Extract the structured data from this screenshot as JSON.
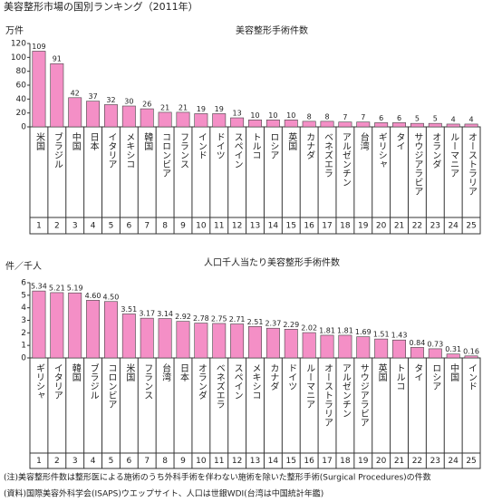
{
  "title": "美容整形市場の国別ランキング（2011年）",
  "notes": [
    "(注)美容整形件数は整形医による施術のうち外科手術を伴わない施術を除いた整形手術(Surgical Procedures)の件数",
    "(資料)国際美容外科学会(ISAPS)ウエップサイト、人口は世銀WDI(台湾は中国統計年鑑)"
  ],
  "chart_data": [
    {
      "type": "bar",
      "title": "美容整形手術件数",
      "y_label": "万件",
      "categories": [
        "米国",
        "ブラジル",
        "中国",
        "日本",
        "イタリア",
        "メキシコ",
        "韓国",
        "コロンビア",
        "フランス",
        "インド",
        "ドイツ",
        "スペイン",
        "トルコ",
        "ロシア",
        "英国",
        "カナダ",
        "ベネズエラ",
        "アルゼンチン",
        "台湾",
        "ギリシャ",
        "タイ",
        "サウジアラビア",
        "オランダ",
        "ルーマニア",
        "オーストラリア"
      ],
      "ranks": [
        1,
        2,
        3,
        4,
        5,
        6,
        7,
        8,
        9,
        10,
        11,
        12,
        13,
        14,
        15,
        16,
        17,
        18,
        19,
        20,
        21,
        22,
        23,
        24,
        25
      ],
      "values": [
        109,
        91,
        42,
        37,
        32,
        30,
        26,
        21,
        21,
        19,
        19,
        13,
        10,
        10,
        10,
        8,
        8,
        7,
        7,
        6,
        6,
        5,
        5,
        4,
        4
      ],
      "color": "#f48fc6",
      "ylim": [
        0,
        120
      ],
      "yticks": [
        0,
        20,
        40,
        60,
        80,
        100,
        120
      ]
    },
    {
      "type": "bar",
      "title": "人口千人当たり美容整形手術件数",
      "y_label": "件／千人",
      "categories": [
        "ギリシャ",
        "イタリア",
        "韓国",
        "ブラジル",
        "コロンビア",
        "米国",
        "フランス",
        "台湾",
        "日本",
        "オランダ",
        "ベネズエラ",
        "スペイン",
        "メキシコ",
        "カナダ",
        "ドイツ",
        "ルーマニア",
        "オーストラリア",
        "アルゼンチン",
        "サウジアラビア",
        "英国",
        "トルコ",
        "タイ",
        "ロシア",
        "中国",
        "インド"
      ],
      "ranks": [
        1,
        2,
        3,
        4,
        5,
        6,
        7,
        8,
        9,
        10,
        11,
        12,
        13,
        14,
        15,
        16,
        17,
        18,
        19,
        20,
        21,
        22,
        23,
        24,
        25
      ],
      "values": [
        5.34,
        5.21,
        5.19,
        4.6,
        4.5,
        3.51,
        3.17,
        3.14,
        2.92,
        2.78,
        2.75,
        2.71,
        2.51,
        2.37,
        2.29,
        2.02,
        1.81,
        1.81,
        1.69,
        1.51,
        1.43,
        0.84,
        0.73,
        0.31,
        0.16
      ],
      "value_labels": [
        "5.34",
        "5.21",
        "5.19",
        "4.60",
        "4.50",
        "3.51",
        "3.17",
        "3.14",
        "2.92",
        "2.78",
        "2.75",
        "2.71",
        "2.51",
        "2.37",
        "2.29",
        "2.02",
        "1.81",
        "1.81",
        "1.69",
        "1.51",
        "1.43",
        "0.84",
        "0.73",
        "0.31",
        "0.16"
      ],
      "color": "#f48fc6",
      "ylim": [
        0,
        6
      ],
      "yticks": [
        0,
        1,
        2,
        3,
        4,
        5,
        6
      ]
    }
  ]
}
